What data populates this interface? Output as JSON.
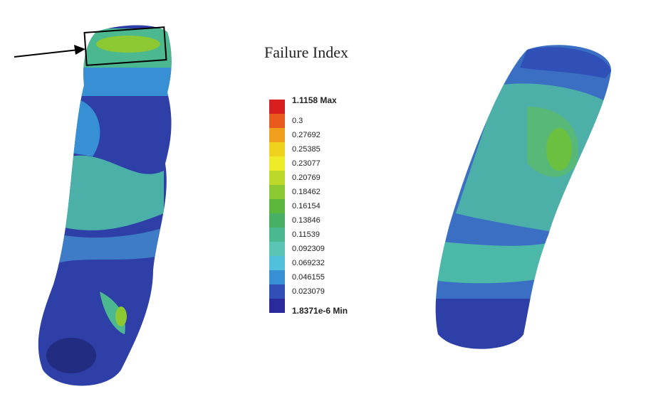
{
  "title": "Failure Index",
  "legend": [
    {
      "label": "1.1158 Max",
      "color": "#d81e1e"
    },
    {
      "label": "0.3",
      "color": "#e85a1e"
    },
    {
      "label": "0.27692",
      "color": "#f0a01e"
    },
    {
      "label": "0.25385",
      "color": "#f0d21e"
    },
    {
      "label": "0.23077",
      "color": "#ecec28"
    },
    {
      "label": "0.20769",
      "color": "#bcd828"
    },
    {
      "label": "0.18462",
      "color": "#8cc832"
    },
    {
      "label": "0.16154",
      "color": "#5cb83c"
    },
    {
      "label": "0.13846",
      "color": "#48b064"
    },
    {
      "label": "0.11539",
      "color": "#4cb890"
    },
    {
      "label": "0.092309",
      "color": "#5cc4b4"
    },
    {
      "label": "0.069232",
      "color": "#50c0dc"
    },
    {
      "label": "0.046155",
      "color": "#3890d4"
    },
    {
      "label": "0.023079",
      "color": "#3050b8"
    },
    {
      "label": "1.8371e-6 Min",
      "color": "#2a2a9c"
    }
  ]
}
